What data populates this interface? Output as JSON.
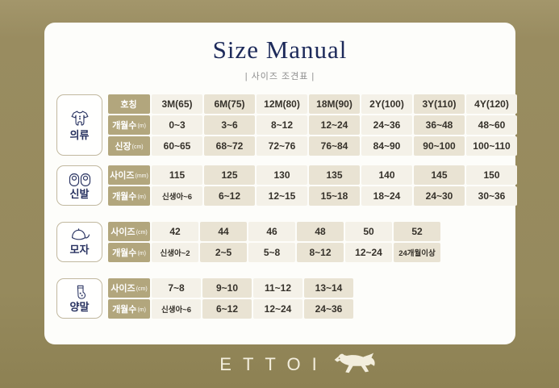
{
  "page": {
    "title": "Size Manual",
    "subtitle": "| 사이즈 조견표 |",
    "brand": "ETTOI",
    "colors": {
      "background": "#998c60",
      "card": "#fdfdfa",
      "title": "#1d2a5a",
      "header_cell": "#b2a67d",
      "cell_light": "#f4f1e8",
      "cell_beige": "#e9e3d3",
      "category_label": "#273160",
      "logo_cream": "#f3eedd"
    }
  },
  "tables": [
    {
      "id": "clothing",
      "category_label": "의류",
      "icon": "romper-icon",
      "rows": [
        {
          "header": "호칭",
          "header_unit": "",
          "cells": [
            "3M(65)",
            "6M(75)",
            "12M(80)",
            "18M(90)",
            "2Y(100)",
            "3Y(110)",
            "4Y(120)"
          ]
        },
        {
          "header": "개월수",
          "header_unit": "(m)",
          "cells": [
            "0~3",
            "3~6",
            "8~12",
            "12~24",
            "24~36",
            "36~48",
            "48~60"
          ]
        },
        {
          "header": "신장",
          "header_unit": "(cm)",
          "cells": [
            "60~65",
            "68~72",
            "72~76",
            "76~84",
            "84~90",
            "90~100",
            "100~110"
          ]
        }
      ]
    },
    {
      "id": "shoes",
      "category_label": "신발",
      "icon": "shoes-icon",
      "rows": [
        {
          "header": "사이즈",
          "header_unit": "(mm)",
          "cells": [
            "115",
            "125",
            "130",
            "135",
            "140",
            "145",
            "150"
          ]
        },
        {
          "header": "개월수",
          "header_unit": "(m)",
          "cells": [
            "신생아~6",
            "6~12",
            "12~15",
            "15~18",
            "18~24",
            "24~30",
            "30~36"
          ]
        }
      ]
    },
    {
      "id": "hats",
      "category_label": "모자",
      "icon": "cap-icon",
      "rows": [
        {
          "header": "사이즈",
          "header_unit": "(cm)",
          "cells": [
            "42",
            "44",
            "46",
            "48",
            "50",
            "52"
          ]
        },
        {
          "header": "개월수",
          "header_unit": "(m)",
          "cells": [
            "신생아~2",
            "2~5",
            "5~8",
            "8~12",
            "12~24",
            "24개월이상"
          ]
        }
      ]
    },
    {
      "id": "socks",
      "category_label": "양말",
      "icon": "socks-icon",
      "rows": [
        {
          "header": "사이즈",
          "header_unit": "(cm)",
          "cells": [
            "7~8",
            "9~10",
            "11~12",
            "13~14"
          ]
        },
        {
          "header": "개월수",
          "header_unit": "(m)",
          "cells": [
            "신생아~6",
            "6~12",
            "12~24",
            "24~36"
          ]
        }
      ]
    }
  ]
}
